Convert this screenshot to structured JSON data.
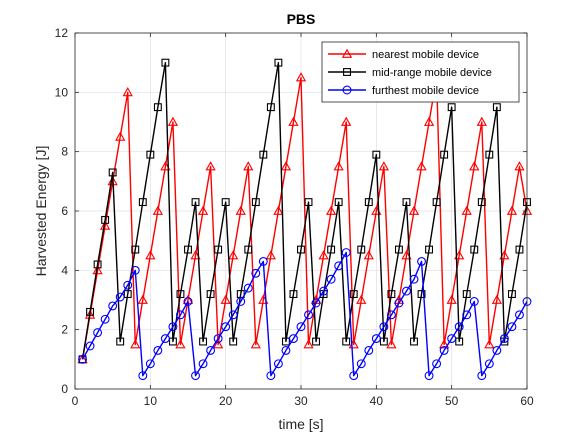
{
  "chart_data": {
    "type": "line",
    "title": "PBS",
    "xlabel": "time [s]",
    "ylabel": "Harvested Energy [J]",
    "xlim": [
      0,
      60
    ],
    "ylim": [
      0,
      12
    ],
    "xticks": [
      0,
      10,
      20,
      30,
      40,
      50,
      60
    ],
    "yticks": [
      0,
      2,
      4,
      6,
      8,
      10,
      12
    ],
    "grid": true,
    "legend_position": "top-right",
    "x": [
      1,
      2,
      3,
      4,
      5,
      6,
      7,
      8,
      9,
      10,
      11,
      12,
      13,
      14,
      15,
      16,
      17,
      18,
      19,
      20,
      21,
      22,
      23,
      24,
      25,
      26,
      27,
      28,
      29,
      30,
      31,
      32,
      33,
      34,
      35,
      36,
      37,
      38,
      39,
      40,
      41,
      42,
      43,
      44,
      45,
      46,
      47,
      48,
      49,
      50,
      51,
      52,
      53,
      54,
      55,
      56,
      57,
      58,
      59,
      60
    ],
    "series": [
      {
        "name": "nearest mobile device",
        "color": "#ff0000",
        "marker": "triangle",
        "values": [
          1.0,
          2.5,
          4.0,
          5.5,
          7.0,
          8.5,
          10.0,
          1.5,
          3.0,
          4.5,
          6.0,
          7.5,
          9.0,
          1.5,
          3.0,
          4.5,
          6.0,
          7.5,
          1.5,
          3.0,
          4.5,
          6.0,
          7.5,
          1.5,
          3.0,
          4.5,
          6.0,
          7.5,
          9.0,
          10.5,
          1.5,
          3.0,
          4.5,
          6.0,
          7.5,
          9.0,
          1.5,
          3.0,
          4.5,
          6.0,
          7.5,
          1.5,
          3.0,
          4.5,
          6.0,
          7.5,
          9.0,
          10.5,
          1.5,
          3.0,
          4.5,
          6.0,
          7.5,
          9.0,
          1.5,
          3.0,
          4.5,
          6.0,
          7.5,
          6.0
        ]
      },
      {
        "name": "mid-range mobile device",
        "color": "#000000",
        "marker": "square",
        "values": [
          1.0,
          2.6,
          4.2,
          5.7,
          7.3,
          1.6,
          3.2,
          4.7,
          6.3,
          7.9,
          9.5,
          11.0,
          1.6,
          3.2,
          4.7,
          6.3,
          1.6,
          3.2,
          4.7,
          6.3,
          1.6,
          3.2,
          4.7,
          6.3,
          7.9,
          9.5,
          11.0,
          1.6,
          3.2,
          4.7,
          6.3,
          1.6,
          3.2,
          4.7,
          6.3,
          1.6,
          3.2,
          4.7,
          6.3,
          7.9,
          1.6,
          3.2,
          4.7,
          6.3,
          1.6,
          3.2,
          4.7,
          6.3,
          7.9,
          9.5,
          1.6,
          3.2,
          4.7,
          6.3,
          7.9,
          9.5,
          1.6,
          3.2,
          4.7,
          6.3
        ]
      },
      {
        "name": "furthest mobile device",
        "color": "#0000ff",
        "marker": "circle",
        "values": [
          1.0,
          1.45,
          1.9,
          2.35,
          2.8,
          3.1,
          3.5,
          4.0,
          0.45,
          0.85,
          1.3,
          1.7,
          2.1,
          2.5,
          2.95,
          0.45,
          0.85,
          1.3,
          1.7,
          2.1,
          2.5,
          2.95,
          3.4,
          3.9,
          4.3,
          0.45,
          0.85,
          1.3,
          1.7,
          2.1,
          2.5,
          2.9,
          3.3,
          3.7,
          4.15,
          4.6,
          0.45,
          0.85,
          1.3,
          1.7,
          2.1,
          2.5,
          2.9,
          3.3,
          3.7,
          4.3,
          0.45,
          0.85,
          1.3,
          1.7,
          2.1,
          2.5,
          2.95,
          0.45,
          0.85,
          1.3,
          1.7,
          2.1,
          2.5,
          2.95
        ]
      }
    ]
  }
}
